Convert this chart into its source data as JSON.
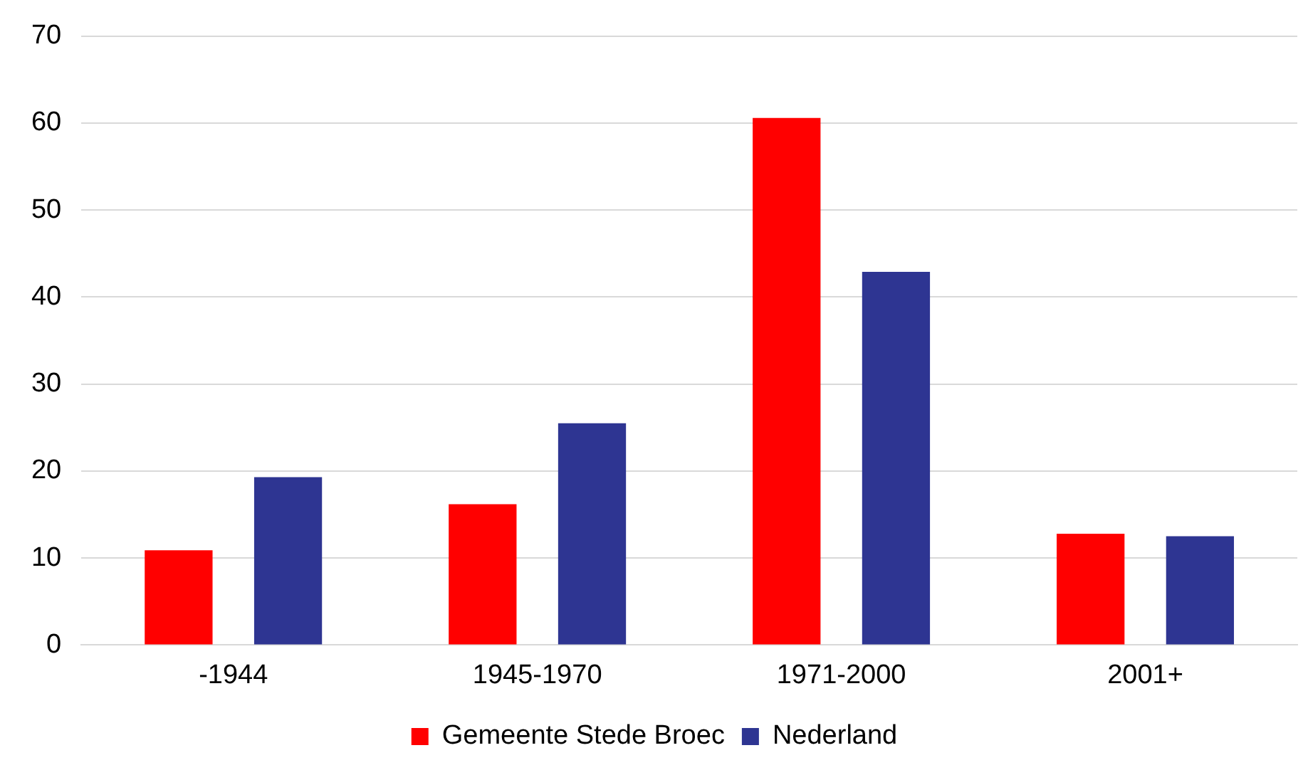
{
  "chart_data": {
    "type": "bar",
    "categories": [
      "-1944",
      "1945-1970",
      "1971-2000",
      "2001+"
    ],
    "series": [
      {
        "name": "Gemeente Stede Broec",
        "color": "#ff0000",
        "values": [
          10.9,
          16.2,
          60.6,
          12.8
        ]
      },
      {
        "name": "Nederland",
        "color": "#2e3592",
        "values": [
          19.3,
          25.5,
          42.9,
          12.5
        ]
      }
    ],
    "ylim": [
      0,
      70
    ],
    "yticks": [
      0,
      10,
      20,
      30,
      40,
      50,
      60,
      70
    ],
    "grid": "y",
    "legend": "bottom"
  }
}
